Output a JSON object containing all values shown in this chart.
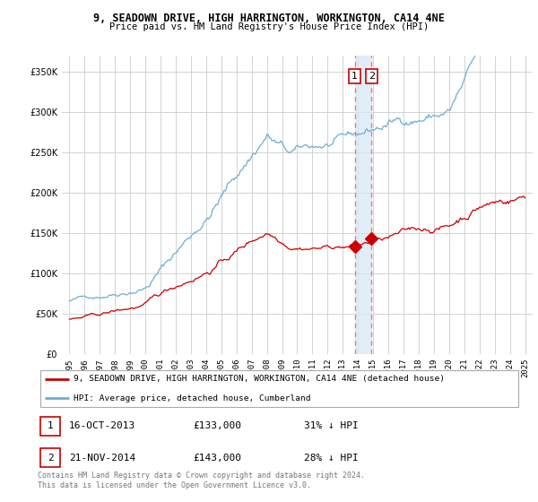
{
  "title": "9, SEADOWN DRIVE, HIGH HARRINGTON, WORKINGTON, CA14 4NE",
  "subtitle": "Price paid vs. HM Land Registry's House Price Index (HPI)",
  "legend_line1": "9, SEADOWN DRIVE, HIGH HARRINGTON, WORKINGTON, CA14 4NE (detached house)",
  "legend_line2": "HPI: Average price, detached house, Cumberland",
  "footnote": "Contains HM Land Registry data © Crown copyright and database right 2024.\nThis data is licensed under the Open Government Licence v3.0.",
  "sale1_label": "1",
  "sale1_date": "16-OCT-2013",
  "sale1_price": "£133,000",
  "sale1_hpi": "31% ↓ HPI",
  "sale2_label": "2",
  "sale2_date": "21-NOV-2014",
  "sale2_price": "£143,000",
  "sale2_hpi": "28% ↓ HPI",
  "hpi_color": "#6aaed6",
  "price_color": "#cc0000",
  "vline_color": "#e08080",
  "shade_color": "#d6e8f5",
  "ylim_min": 0,
  "ylim_max": 370000,
  "yticks": [
    0,
    50000,
    100000,
    150000,
    200000,
    250000,
    300000,
    350000
  ],
  "sale1_x": 2013.79,
  "sale1_y": 133000,
  "sale2_x": 2014.89,
  "sale2_y": 143000,
  "xlim_min": 1994.5,
  "xlim_max": 2025.5
}
